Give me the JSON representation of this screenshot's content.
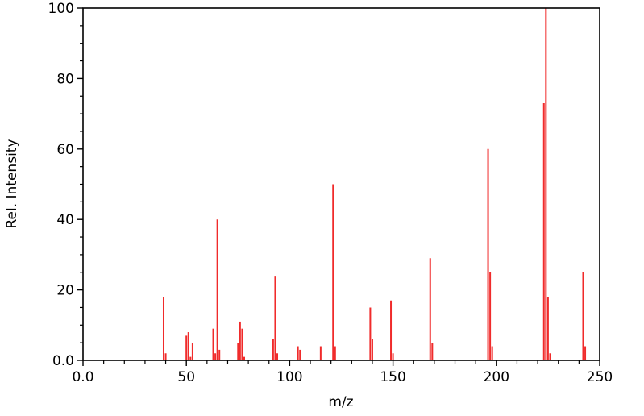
{
  "figure": {
    "background": "#ffffff",
    "axis_color": "#000000",
    "bar_color": "#f02b2b"
  },
  "chart_data": {
    "type": "bar",
    "subtype": "mass-spectrum-stick-plot",
    "title": "",
    "xlabel": "m/z",
    "ylabel": "Rel. Intensity",
    "xlim": [
      0,
      250
    ],
    "ylim": [
      0,
      100
    ],
    "grid": false,
    "legend": "none",
    "x_major_ticks": [
      0,
      50,
      100,
      150,
      200,
      250
    ],
    "x_tick_labels": [
      "0.0",
      "50",
      "100",
      "150",
      "200",
      "250"
    ],
    "x_minor_step": 10,
    "y_major_ticks": [
      0,
      20,
      40,
      60,
      80,
      100
    ],
    "y_tick_labels": [
      "0.0",
      "20",
      "40",
      "60",
      "80",
      "100"
    ],
    "y_minor_step": 5,
    "series": [
      {
        "name": "relative-intensity",
        "points": [
          [
            39,
            18
          ],
          [
            40,
            2
          ],
          [
            50,
            7
          ],
          [
            51,
            8
          ],
          [
            52,
            1
          ],
          [
            53,
            5
          ],
          [
            63,
            9
          ],
          [
            64,
            2
          ],
          [
            65,
            40
          ],
          [
            66,
            3
          ],
          [
            75,
            5
          ],
          [
            76,
            11
          ],
          [
            77,
            9
          ],
          [
            78,
            1
          ],
          [
            92,
            6
          ],
          [
            93,
            24
          ],
          [
            94,
            2
          ],
          [
            104,
            4
          ],
          [
            105,
            3
          ],
          [
            115,
            4
          ],
          [
            121,
            50
          ],
          [
            122,
            4
          ],
          [
            139,
            15
          ],
          [
            140,
            6
          ],
          [
            149,
            17
          ],
          [
            150,
            2
          ],
          [
            168,
            29
          ],
          [
            169,
            5
          ],
          [
            196,
            60
          ],
          [
            197,
            25
          ],
          [
            198,
            4
          ],
          [
            223,
            73
          ],
          [
            224,
            100
          ],
          [
            225,
            18
          ],
          [
            226,
            2
          ],
          [
            242,
            25
          ],
          [
            243,
            4
          ]
        ]
      }
    ]
  }
}
